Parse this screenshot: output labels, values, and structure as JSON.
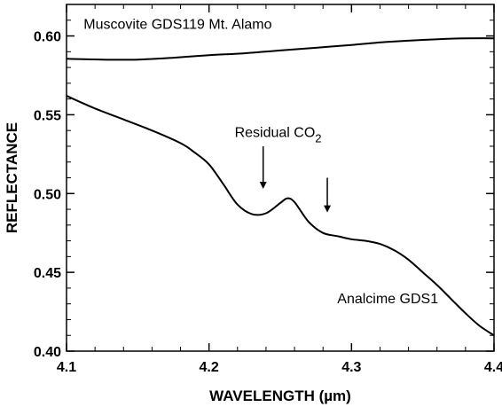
{
  "chart_data": {
    "type": "line",
    "xlabel": "WAVELENGTH (µm)",
    "ylabel": "REFLECTANCE",
    "xlim": [
      4.1,
      4.4
    ],
    "ylim": [
      0.4,
      0.62
    ],
    "xticks": [
      4.1,
      4.2,
      4.3,
      4.4
    ],
    "xtick_labels": [
      "4.1",
      "4.2",
      "4.3",
      "4.4"
    ],
    "yticks": [
      0.4,
      0.45,
      0.5,
      0.55,
      0.6
    ],
    "ytick_labels": [
      "0.40",
      "0.45",
      "0.50",
      "0.55",
      "0.60"
    ],
    "grid": false,
    "legend": "none",
    "series": [
      {
        "name": "Muscovite GDS119 Mt. Alamo",
        "x": [
          4.1,
          4.125,
          4.15,
          4.175,
          4.2,
          4.225,
          4.25,
          4.275,
          4.3,
          4.325,
          4.35,
          4.375,
          4.4
        ],
        "y": [
          0.5855,
          0.585,
          0.585,
          0.5862,
          0.5878,
          0.589,
          0.5908,
          0.5925,
          0.5943,
          0.5962,
          0.5975,
          0.5984,
          0.5985
        ]
      },
      {
        "name": "Analcime GDS1",
        "x": [
          4.1,
          4.12,
          4.14,
          4.16,
          4.18,
          4.19,
          4.2,
          4.21,
          4.22,
          4.23,
          4.24,
          4.25,
          4.255,
          4.26,
          4.27,
          4.28,
          4.29,
          4.3,
          4.31,
          4.32,
          4.33,
          4.34,
          4.35,
          4.36,
          4.37,
          4.38,
          4.39,
          4.4
        ],
        "y": [
          0.562,
          0.554,
          0.547,
          0.54,
          0.532,
          0.526,
          0.5185,
          0.506,
          0.493,
          0.487,
          0.4875,
          0.494,
          0.497,
          0.4945,
          0.482,
          0.475,
          0.473,
          0.471,
          0.47,
          0.468,
          0.464,
          0.458,
          0.45,
          0.442,
          0.433,
          0.424,
          0.416,
          0.41
        ]
      }
    ],
    "annotations": [
      {
        "text": "Muscovite GDS119 Mt. Alamo",
        "x": 4.112,
        "y": 0.6045
      },
      {
        "text": "Residual CO",
        "subscript": "2",
        "x": 4.218,
        "y": 0.536
      },
      {
        "text": "Analcime GDS1",
        "x": 4.29,
        "y": 0.4305
      }
    ],
    "arrows": [
      {
        "x": 4.238,
        "y_from": 0.53,
        "y_to": 0.503
      },
      {
        "x": 4.283,
        "y_from": 0.51,
        "y_to": 0.488
      }
    ]
  }
}
